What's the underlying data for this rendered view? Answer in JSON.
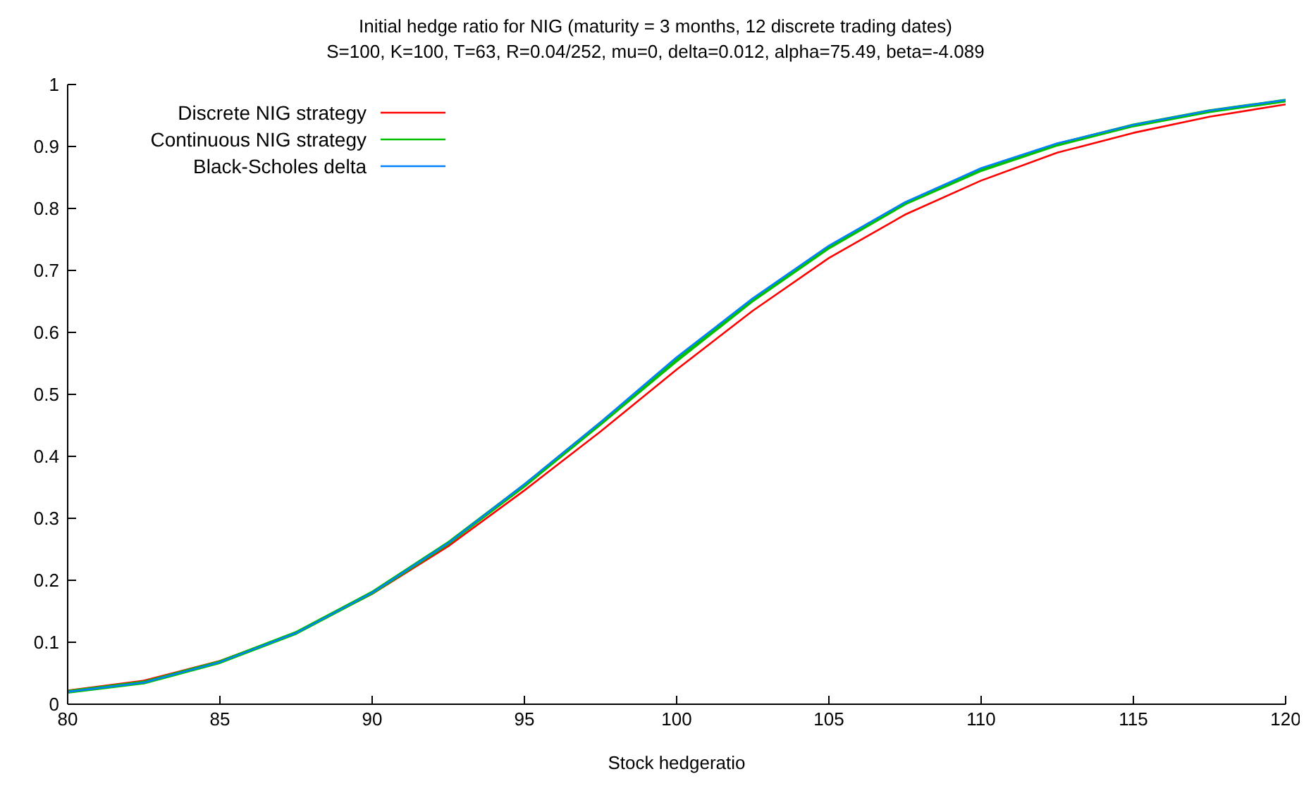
{
  "chart_data": {
    "type": "line",
    "title": "Initial hedge ratio for NIG (maturity = 3 months, 12 discrete trading dates)",
    "subtitle": "S=100, K=100, T=63, R=0.04/252, mu=0, delta=0.012, alpha=75.49, beta=-4.089",
    "xlabel": "Stock hedgeratio",
    "x": [
      80,
      82.5,
      85,
      87.5,
      90,
      92.5,
      95,
      97.5,
      100,
      102.5,
      105,
      107.5,
      110,
      112.5,
      115,
      117.5,
      120
    ],
    "series": [
      {
        "name": "Discrete NIG strategy",
        "color": "#ff0000",
        "values": [
          0.022,
          0.038,
          0.07,
          0.115,
          0.178,
          0.255,
          0.345,
          0.44,
          0.54,
          0.635,
          0.72,
          0.79,
          0.845,
          0.89,
          0.922,
          0.948,
          0.968
        ]
      },
      {
        "name": "Continuous NIG strategy",
        "color": "#00c000",
        "values": [
          0.02,
          0.035,
          0.068,
          0.115,
          0.18,
          0.26,
          0.353,
          0.453,
          0.555,
          0.652,
          0.737,
          0.808,
          0.862,
          0.903,
          0.934,
          0.957,
          0.974
        ]
      },
      {
        "name": "Black-Scholes delta",
        "color": "#0080ff",
        "values": [
          0.02,
          0.035,
          0.068,
          0.115,
          0.18,
          0.26,
          0.355,
          0.455,
          0.56,
          0.655,
          0.74,
          0.81,
          0.865,
          0.905,
          0.935,
          0.958,
          0.975
        ]
      }
    ],
    "xlim": [
      80,
      120
    ],
    "xticks": [
      80,
      85,
      90,
      95,
      100,
      105,
      110,
      115,
      120
    ],
    "ylim": [
      0,
      1
    ],
    "yticks": [
      0,
      0.1,
      0.2,
      0.3,
      0.4,
      0.5,
      0.6,
      0.7,
      0.8,
      0.9,
      1
    ],
    "grid": false,
    "legend": "top left",
    "marker": "none",
    "line_style": "solid"
  }
}
